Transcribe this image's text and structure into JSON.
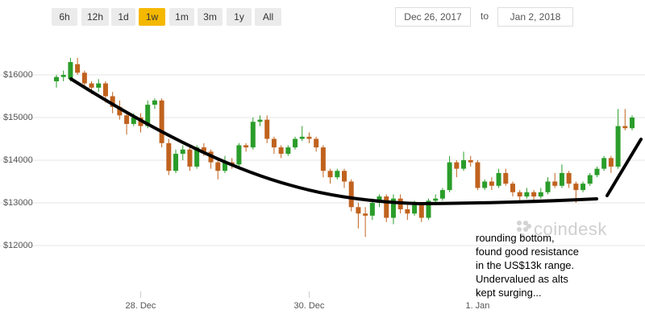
{
  "toolbar": {
    "buttons": [
      {
        "label": "6h",
        "active": false
      },
      {
        "label": "12h",
        "active": false
      },
      {
        "label": "1d",
        "active": false
      },
      {
        "label": "1w",
        "active": true
      },
      {
        "label": "1m",
        "active": false
      },
      {
        "label": "3m",
        "active": false
      },
      {
        "label": "1y",
        "active": false
      },
      {
        "label": "All",
        "active": false
      }
    ],
    "date_from": "Dec 26, 2017",
    "date_separator": "to",
    "date_to": "Jan 2, 2018"
  },
  "watermark": "coindesk",
  "annotation": [
    "rounding bottom,",
    "found good resistance",
    "in the US$13k range.",
    "Undervalued as alts",
    "kept surging..."
  ],
  "chart_data": {
    "type": "candlestick",
    "categories": [
      null,
      null,
      null,
      null,
      null,
      null,
      null,
      null,
      null,
      null,
      null,
      null,
      "28. Dec",
      null,
      null,
      null,
      null,
      null,
      null,
      null,
      null,
      null,
      null,
      null,
      null,
      null,
      null,
      null,
      null,
      null,
      null,
      null,
      null,
      null,
      null,
      null,
      "30. Dec",
      null,
      null,
      null,
      null,
      null,
      null,
      null,
      null,
      null,
      null,
      null,
      null,
      null,
      null,
      null,
      null,
      null,
      null,
      null,
      null,
      null,
      null,
      null,
      "1. Jan",
      null,
      null,
      null,
      null,
      null,
      null,
      null,
      null,
      null,
      null,
      null,
      null,
      null,
      null,
      null,
      null,
      null,
      null,
      null,
      null,
      null,
      null
    ],
    "open": [
      15850,
      15950,
      15900,
      16250,
      16050,
      15800,
      15700,
      15800,
      15500,
      15250,
      15050,
      14850,
      15000,
      14800,
      15300,
      15400,
      14400,
      13750,
      14150,
      14250,
      13850,
      14300,
      14200,
      13950,
      13750,
      13950,
      13900,
      14350,
      14300,
      14900,
      14950,
      14500,
      14300,
      14150,
      14300,
      14500,
      14550,
      14500,
      14300,
      13750,
      13600,
      13750,
      13500,
      12900,
      12750,
      12700,
      13000,
      13150,
      12650,
      13100,
      12850,
      12750,
      12950,
      12650,
      13050,
      13100,
      13300,
      13950,
      13800,
      14000,
      13950,
      13350,
      13500,
      13400,
      13700,
      13450,
      13250,
      13150,
      13250,
      13150,
      13250,
      13500,
      13400,
      13700,
      13450,
      13300,
      13450,
      13650,
      13800,
      14050,
      13850,
      14800,
      14750
    ],
    "high": [
      16000,
      16100,
      16400,
      16400,
      16100,
      15850,
      15900,
      15850,
      15600,
      15400,
      15150,
      15100,
      15100,
      15400,
      15450,
      15450,
      14500,
      14250,
      14350,
      14300,
      14350,
      14400,
      14250,
      14050,
      14100,
      14050,
      14400,
      14400,
      15000,
      15050,
      15050,
      14550,
      14350,
      14350,
      14550,
      14800,
      14650,
      14550,
      14350,
      13800,
      13800,
      13800,
      13550,
      13000,
      12900,
      13100,
      13200,
      13200,
      13200,
      13200,
      12950,
      13050,
      13000,
      13100,
      13200,
      13350,
      14100,
      14000,
      14200,
      14100,
      14000,
      13550,
      13600,
      13800,
      13800,
      13500,
      13300,
      13350,
      13300,
      13350,
      13600,
      13700,
      13900,
      13750,
      13500,
      13500,
      13700,
      13850,
      14100,
      14100,
      15200,
      15200,
      15050
    ],
    "low": [
      15700,
      15850,
      15850,
      16000,
      15700,
      15550,
      15600,
      15350,
      15100,
      14950,
      14600,
      14800,
      14650,
      14750,
      15200,
      14300,
      13650,
      13700,
      14000,
      13750,
      13800,
      14100,
      13800,
      13550,
      13700,
      13800,
      13850,
      14200,
      14250,
      14800,
      14400,
      14150,
      14050,
      14100,
      14250,
      14450,
      14400,
      14200,
      13600,
      13450,
      13550,
      13350,
      12800,
      12400,
      12200,
      12600,
      12900,
      12550,
      12500,
      12750,
      12600,
      12700,
      12550,
      12600,
      12950,
      13050,
      13250,
      13600,
      13750,
      13850,
      13300,
      13300,
      13300,
      13350,
      13400,
      13150,
      13050,
      13100,
      13050,
      13100,
      13200,
      13350,
      13350,
      13350,
      13000,
      13250,
      13400,
      13600,
      13750,
      13700,
      13800,
      14700,
      14700
    ],
    "close": [
      15950,
      16000,
      16300,
      16050,
      15800,
      15700,
      15800,
      15500,
      15250,
      15050,
      14850,
      15000,
      14800,
      15300,
      15400,
      14400,
      13750,
      14150,
      14250,
      13850,
      14300,
      14200,
      13950,
      13750,
      13950,
      13900,
      14350,
      14300,
      14900,
      14950,
      14500,
      14300,
      14150,
      14300,
      14500,
      14550,
      14500,
      14300,
      13750,
      13600,
      13750,
      13500,
      12900,
      12750,
      12700,
      13000,
      13150,
      12650,
      13100,
      12850,
      12750,
      12950,
      12650,
      13050,
      13100,
      13300,
      13950,
      13800,
      14000,
      13950,
      13350,
      13500,
      13400,
      13700,
      13450,
      13250,
      13150,
      13250,
      13150,
      13250,
      13500,
      13400,
      13700,
      13450,
      13300,
      13450,
      13650,
      13800,
      14050,
      13850,
      14800,
      14750,
      15000
    ],
    "up_color": "#2a9d2a",
    "down_color": "#c0621e",
    "ylim": [
      10600,
      17000
    ],
    "yticks": [
      {
        "value": 12000,
        "label": "$12000"
      },
      {
        "value": 13000,
        "label": "$13000"
      },
      {
        "value": 14000,
        "label": "$14000"
      },
      {
        "value": 15000,
        "label": "$15000"
      },
      {
        "value": 16000,
        "label": "$16000"
      }
    ],
    "grid": true
  }
}
